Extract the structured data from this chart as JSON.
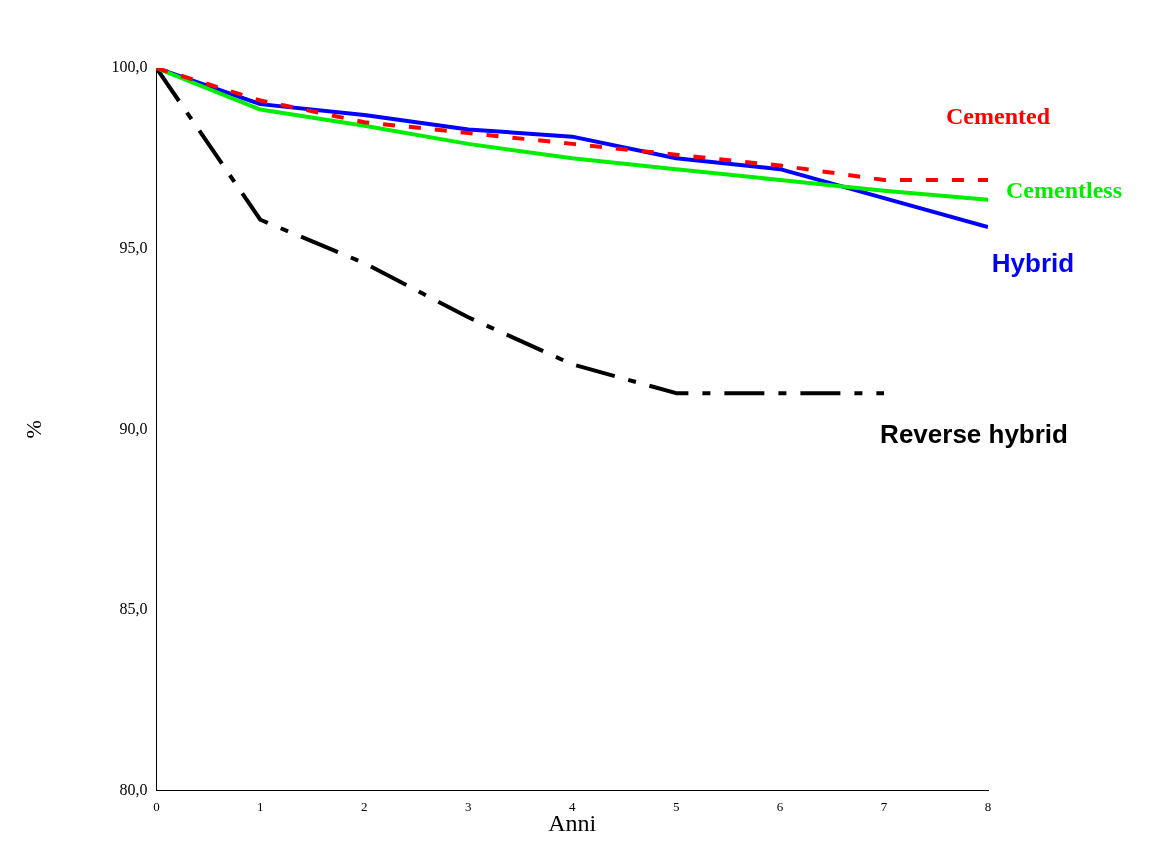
{
  "chart_data": {
    "type": "line",
    "xlabel": "Anni",
    "ylabel": "%",
    "x": [
      0,
      1,
      2,
      3,
      4,
      5,
      6,
      7,
      8
    ],
    "xlim": [
      0,
      8
    ],
    "xticks": [
      0,
      1,
      2,
      3,
      4,
      5,
      6,
      7,
      8
    ],
    "ylim": [
      80,
      100
    ],
    "yticks": [
      {
        "value": 80,
        "label": "80,0"
      },
      {
        "value": 85,
        "label": "85,0"
      },
      {
        "value": 90,
        "label": "90,0"
      },
      {
        "value": 95,
        "label": "95,0"
      },
      {
        "value": 100,
        "label": "100,0"
      }
    ],
    "grid": false,
    "legend": false,
    "marker": "none",
    "series": [
      {
        "name": "Cemented",
        "color": "#ff0000",
        "line_style": "dotted",
        "values": [
          100,
          99.1,
          98.5,
          98.2,
          97.9,
          97.6,
          97.3,
          96.9,
          96.9
        ]
      },
      {
        "name": "Cementless",
        "color": "#00ee00",
        "line_style": "solid",
        "values": [
          100,
          98.85,
          98.4,
          97.9,
          97.5,
          97.2,
          96.9,
          96.6,
          96.35
        ]
      },
      {
        "name": "Hybrid",
        "color": "#0000ff",
        "line_style": "solid",
        "values": [
          100,
          99.0,
          98.7,
          98.3,
          98.1,
          97.5,
          97.2,
          96.4,
          95.6
        ]
      },
      {
        "name": "Reverse hybrid",
        "color": "#000000",
        "line_style": "dashed",
        "values": [
          100,
          95.8,
          94.6,
          93.1,
          91.8,
          91.0,
          91.0,
          91.0,
          null
        ]
      }
    ]
  }
}
